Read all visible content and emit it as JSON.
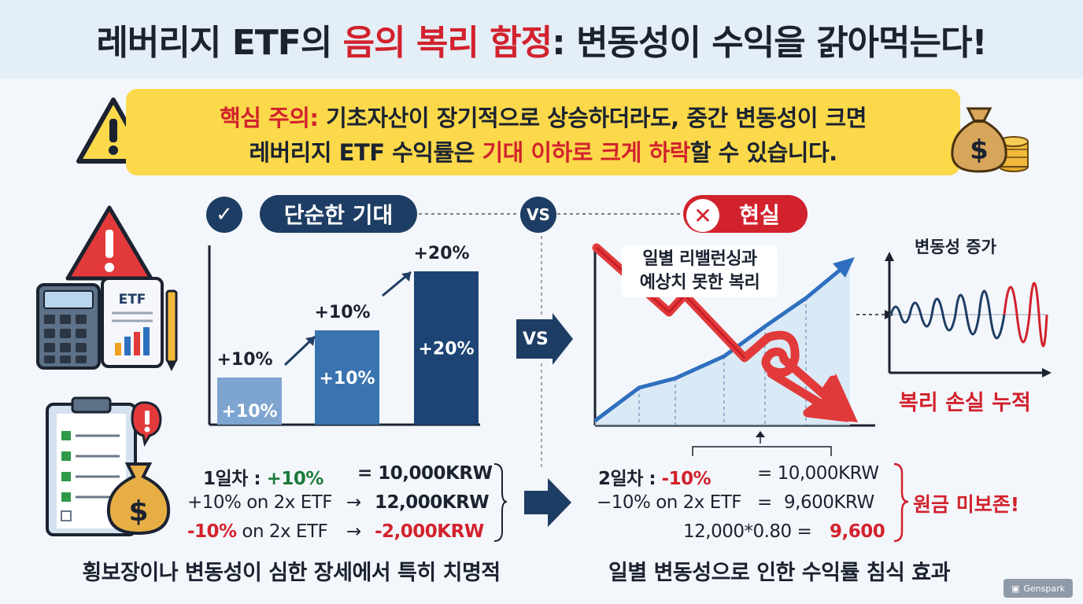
{
  "title": {
    "part1": "레버리지 ETF의 ",
    "highlight": "음의 복리 함정",
    "part2": ": 변동성이 수익을 갉아먹는다!"
  },
  "banner": {
    "label": "핵심 주의:",
    "line1_rest": " 기초자산이 장기적으로 상승하더라도, 중간 변동성이 크면",
    "line2_a": "레버리지 ETF 수익률은 ",
    "line2_highlight": "기대 이하로 크게 하락",
    "line2_b": "할 수 있습니다."
  },
  "headers": {
    "expectation": "단순한 기대",
    "vs": "VS",
    "reality": "현실"
  },
  "expectation_chart": {
    "bars": [
      {
        "inner": "+10%",
        "top": "+10%",
        "color": "#7ea5d0",
        "value": 1
      },
      {
        "inner": "+10%",
        "top": "+10%",
        "color": "#3a74b0",
        "value": 2
      },
      {
        "inner": "+20%",
        "top": "+20%",
        "color": "#1d4475",
        "value": 3
      }
    ]
  },
  "reality_chart": {
    "annotation_l1": "일별 리밸런싱과",
    "annotation_l2": "예상치 못한 복리"
  },
  "volatility_chart": {
    "title": "변동성 증가",
    "footer": "복리 손실 누적"
  },
  "middle_vs": "VS",
  "left_calc": {
    "row1_label": "1일차 : ",
    "row1_change": "+10%",
    "row1_result": "= 10,000KRW",
    "row2_label": "+10% on 2x ETF",
    "row2_arrow": "→",
    "row2_result": "12,000KRW",
    "row3_label_change": "-10%",
    "row3_label_rest": " on 2x ETF",
    "row3_arrow": "→",
    "row3_result": "-2,000KRW"
  },
  "right_calc": {
    "row1_label": "2일차 : ",
    "row1_change": "-10%",
    "row1_result": "= 10,000KRW",
    "row2_label": "−10% on 2x ETF",
    "row2_eq": "=",
    "row2_result": "9,600KRW",
    "row3_expr": "12,000*0.80 = ",
    "row3_result": "9,600",
    "note": "원금 미보존!"
  },
  "captions": {
    "left": "횡보장이나 변동성이 심한 장세에서 특히 치명적",
    "right": "일별 변동성으로 인한 수익률 침식 효과"
  },
  "icons": {
    "etf_label": "ETF",
    "dollar": "$"
  },
  "watermark": "Genspark",
  "colors": {
    "navy": "#1e3d64",
    "red": "#d2222d",
    "yellow": "#fbd94a",
    "blue": "#2f6fbf"
  }
}
